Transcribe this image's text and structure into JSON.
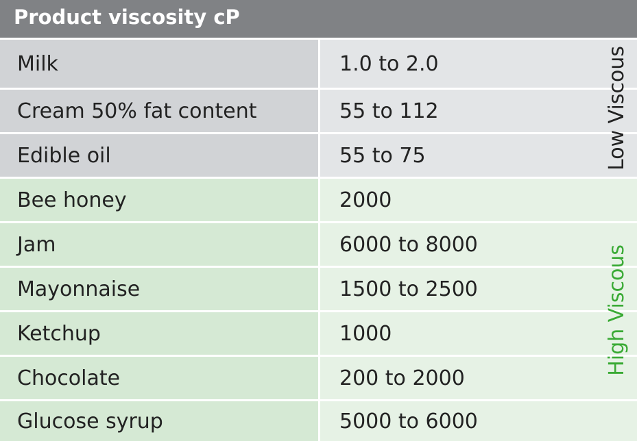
{
  "header": {
    "title": "Product viscosity cP"
  },
  "groups": [
    {
      "label": "Low Viscous",
      "rows": [
        [
          "Milk",
          "1.0 to 2.0"
        ],
        [
          "Cream 50% fat content",
          "55 to 112"
        ],
        [
          "Edible oil",
          "55 to 75"
        ]
      ]
    },
    {
      "label": "High Viscous",
      "rows": [
        [
          "Bee honey",
          "2000"
        ],
        [
          "Jam",
          "6000 to 8000"
        ],
        [
          "Mayonnaise",
          "1500 to 2500"
        ],
        [
          "Ketchup",
          "1000"
        ],
        [
          "Chocolate",
          "200 to 2000"
        ],
        [
          "Glucose syrup",
          "5000 to 6000"
        ]
      ]
    }
  ]
}
